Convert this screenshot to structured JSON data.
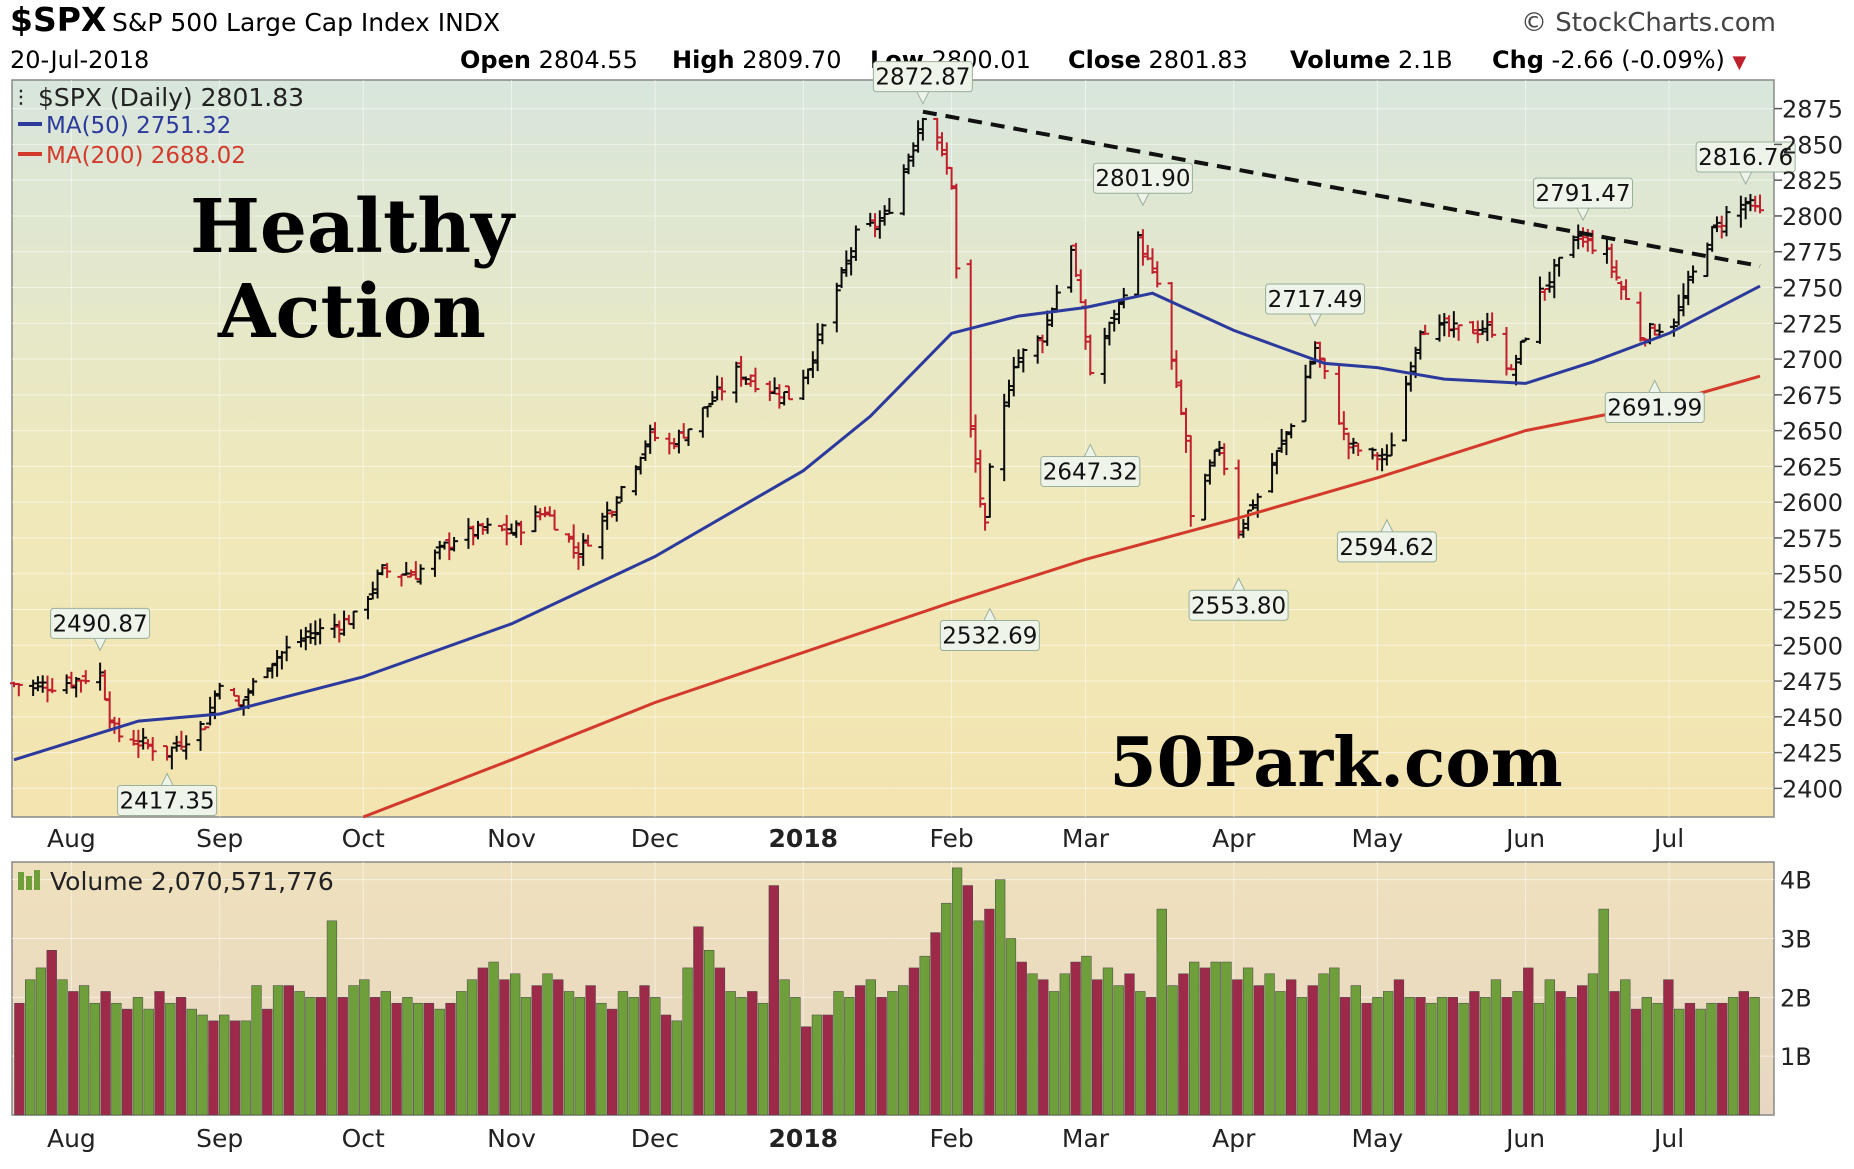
{
  "header": {
    "symbol": "$SPX",
    "description": "S&P 500 Large Cap Index",
    "exchange": "INDX",
    "source": "© StockCharts.com",
    "date": "20-Jul-2018",
    "open_label": "Open",
    "open": "2804.55",
    "high_label": "High",
    "high": "2809.70",
    "low_label": "Low",
    "low": "2800.01",
    "close_label": "Close",
    "close": "2801.83",
    "volume_label": "Volume",
    "volume": "2.1B",
    "chg_label": "Chg",
    "chg": "-2.66 (-0.09%)"
  },
  "legend": {
    "price": "$SPX (Daily) 2801.83",
    "ma50": "MA(50) 2751.32",
    "ma200": "MA(200) 2688.02",
    "volume": "Volume 2,070,571,776"
  },
  "annotations": {
    "headline": [
      "Healthy",
      "Action"
    ],
    "watermark": "50Park.com"
  },
  "colors": {
    "up": "#0b0b0b",
    "down": "#c01f2c",
    "ma50": "#2b3a9c",
    "ma200": "#d33a2c",
    "vol_up": "#6e9f3b",
    "vol_down": "#9e2a4a"
  },
  "chart_data": {
    "type": "line",
    "x_range": [
      "2017-07-20",
      "2018-07-20"
    ],
    "y_range": [
      2380,
      2895
    ],
    "y_ticks": [
      2400,
      2425,
      2450,
      2475,
      2500,
      2525,
      2550,
      2575,
      2600,
      2625,
      2650,
      2675,
      2700,
      2725,
      2750,
      2775,
      2800,
      2825,
      2850,
      2875
    ],
    "x_tick_labels": [
      {
        "label": "Aug",
        "date": "2017-08-01",
        "bold": false
      },
      {
        "label": "Sep",
        "date": "2017-09-01",
        "bold": false
      },
      {
        "label": "Oct",
        "date": "2017-10-01",
        "bold": false
      },
      {
        "label": "Nov",
        "date": "2017-11-01",
        "bold": false
      },
      {
        "label": "Dec",
        "date": "2017-12-01",
        "bold": false
      },
      {
        "label": "2018",
        "date": "2018-01-01",
        "bold": true
      },
      {
        "label": "Feb",
        "date": "2018-02-01",
        "bold": false
      },
      {
        "label": "Mar",
        "date": "2018-03-01",
        "bold": false
      },
      {
        "label": "Apr",
        "date": "2018-04-01",
        "bold": false
      },
      {
        "label": "May",
        "date": "2018-05-01",
        "bold": false
      },
      {
        "label": "Jun",
        "date": "2018-06-01",
        "bold": false
      },
      {
        "label": "Jul",
        "date": "2018-07-01",
        "bold": false
      }
    ],
    "close_series": {
      "name": "$SPX (Daily)",
      "points": [
        [
          "2017-07-20",
          2473
        ],
        [
          "2017-07-28",
          2472
        ],
        [
          "2017-08-07",
          2480
        ],
        [
          "2017-08-10",
          2438
        ],
        [
          "2017-08-17",
          2430
        ],
        [
          "2017-08-21",
          2425
        ],
        [
          "2017-08-29",
          2446
        ],
        [
          "2017-09-01",
          2476
        ],
        [
          "2017-09-05",
          2457
        ],
        [
          "2017-09-11",
          2488
        ],
        [
          "2017-09-20",
          2508
        ],
        [
          "2017-09-29",
          2519
        ],
        [
          "2017-10-05",
          2552
        ],
        [
          "2017-10-12",
          2550
        ],
        [
          "2017-10-20",
          2575
        ],
        [
          "2017-10-27",
          2581
        ],
        [
          "2017-11-01",
          2579
        ],
        [
          "2017-11-08",
          2594
        ],
        [
          "2017-11-15",
          2565
        ],
        [
          "2017-11-22",
          2598
        ],
        [
          "2017-11-30",
          2647
        ],
        [
          "2017-12-04",
          2640
        ],
        [
          "2017-12-08",
          2652
        ],
        [
          "2017-12-18",
          2691
        ],
        [
          "2017-12-22",
          2684
        ],
        [
          "2017-12-29",
          2674
        ],
        [
          "2018-01-02",
          2695
        ],
        [
          "2018-01-08",
          2748
        ],
        [
          "2018-01-12",
          2786
        ],
        [
          "2018-01-18",
          2798
        ],
        [
          "2018-01-22",
          2833
        ],
        [
          "2018-01-26",
          2872
        ],
        [
          "2018-01-29",
          2853
        ],
        [
          "2018-02-01",
          2822
        ],
        [
          "2018-02-02",
          2762
        ],
        [
          "2018-02-05",
          2649
        ],
        [
          "2018-02-08",
          2581
        ],
        [
          "2018-02-09",
          2620
        ],
        [
          "2018-02-14",
          2698
        ],
        [
          "2018-02-20",
          2716
        ],
        [
          "2018-02-26",
          2779
        ],
        [
          "2018-03-02",
          2691
        ],
        [
          "2018-03-08",
          2738
        ],
        [
          "2018-03-12",
          2783
        ],
        [
          "2018-03-16",
          2752
        ],
        [
          "2018-03-22",
          2643
        ],
        [
          "2018-03-23",
          2588
        ],
        [
          "2018-03-29",
          2640
        ],
        [
          "2018-04-02",
          2582
        ],
        [
          "2018-04-06",
          2604
        ],
        [
          "2018-04-13",
          2656
        ],
        [
          "2018-04-18",
          2708
        ],
        [
          "2018-04-25",
          2639
        ],
        [
          "2018-05-03",
          2629
        ],
        [
          "2018-05-10",
          2723
        ],
        [
          "2018-05-17",
          2720
        ],
        [
          "2018-05-25",
          2721
        ],
        [
          "2018-05-29",
          2689
        ],
        [
          "2018-06-04",
          2746
        ],
        [
          "2018-06-12",
          2786
        ],
        [
          "2018-06-18",
          2773
        ],
        [
          "2018-06-25",
          2717
        ],
        [
          "2018-07-02",
          2726
        ],
        [
          "2018-07-09",
          2784
        ],
        [
          "2018-07-13",
          2801
        ],
        [
          "2018-07-17",
          2809
        ],
        [
          "2018-07-20",
          2801
        ]
      ]
    },
    "ma50_series": {
      "name": "MA(50)",
      "points": [
        [
          "2017-07-20",
          2420
        ],
        [
          "2017-08-15",
          2447
        ],
        [
          "2017-09-01",
          2452
        ],
        [
          "2017-10-01",
          2478
        ],
        [
          "2017-11-01",
          2515
        ],
        [
          "2017-12-01",
          2562
        ],
        [
          "2018-01-01",
          2622
        ],
        [
          "2018-01-15",
          2660
        ],
        [
          "2018-02-01",
          2718
        ],
        [
          "2018-02-15",
          2730
        ],
        [
          "2018-03-01",
          2736
        ],
        [
          "2018-03-15",
          2746
        ],
        [
          "2018-04-01",
          2720
        ],
        [
          "2018-04-20",
          2697
        ],
        [
          "2018-05-01",
          2694
        ],
        [
          "2018-05-15",
          2686
        ],
        [
          "2018-06-01",
          2683
        ],
        [
          "2018-06-15",
          2698
        ],
        [
          "2018-07-01",
          2718
        ],
        [
          "2018-07-20",
          2751
        ]
      ]
    },
    "ma200_series": {
      "name": "MA(200)",
      "points": [
        [
          "2017-10-01",
          2380
        ],
        [
          "2017-11-01",
          2420
        ],
        [
          "2017-12-01",
          2460
        ],
        [
          "2018-01-01",
          2495
        ],
        [
          "2018-02-01",
          2530
        ],
        [
          "2018-03-01",
          2560
        ],
        [
          "2018-04-01",
          2588
        ],
        [
          "2018-05-01",
          2617
        ],
        [
          "2018-06-01",
          2650
        ],
        [
          "2018-07-01",
          2670
        ],
        [
          "2018-07-20",
          2688
        ]
      ]
    },
    "trendline": {
      "style": "dashed",
      "points": [
        [
          "2018-01-26",
          2872.87
        ],
        [
          "2018-07-20",
          2765
        ]
      ]
    },
    "labels": [
      {
        "text": "2490.87",
        "date": "2017-08-07",
        "value": 2490.87,
        "pos": "above"
      },
      {
        "text": "2417.35",
        "date": "2017-08-21",
        "value": 2417.35,
        "pos": "below"
      },
      {
        "text": "2872.87",
        "date": "2018-01-26",
        "value": 2872.87,
        "pos": "above"
      },
      {
        "text": "2532.69",
        "date": "2018-02-09",
        "value": 2532.69,
        "pos": "below"
      },
      {
        "text": "2801.90",
        "date": "2018-03-13",
        "value": 2801.9,
        "pos": "above"
      },
      {
        "text": "2647.32",
        "date": "2018-03-02",
        "value": 2647.32,
        "pos": "below"
      },
      {
        "text": "2717.49",
        "date": "2018-04-18",
        "value": 2717.49,
        "pos": "above"
      },
      {
        "text": "2553.80",
        "date": "2018-04-02",
        "value": 2553.8,
        "pos": "below"
      },
      {
        "text": "2594.62",
        "date": "2018-05-03",
        "value": 2594.62,
        "pos": "below"
      },
      {
        "text": "2791.47",
        "date": "2018-06-13",
        "value": 2791.47,
        "pos": "above"
      },
      {
        "text": "2691.99",
        "date": "2018-06-28",
        "value": 2691.99,
        "pos": "below"
      },
      {
        "text": "2816.76",
        "date": "2018-07-17",
        "value": 2816.76,
        "pos": "above"
      }
    ],
    "volume": {
      "y_ticks": [
        {
          "label": "4B",
          "value": 4
        },
        {
          "label": "3B",
          "value": 3
        },
        {
          "label": "2B",
          "value": 2
        },
        {
          "label": "1B",
          "value": 1
        }
      ],
      "y_range": [
        0,
        4.3
      ],
      "values_billions": [
        1.9,
        2.3,
        2.5,
        2.8,
        2.3,
        2.1,
        2.2,
        1.9,
        2.1,
        1.9,
        1.8,
        2.0,
        1.8,
        2.1,
        1.9,
        2.0,
        1.8,
        1.7,
        1.6,
        1.7,
        1.6,
        1.6,
        2.2,
        1.8,
        2.2,
        2.2,
        2.1,
        2.0,
        2.0,
        3.3,
        2.0,
        2.2,
        2.3,
        2.0,
        2.1,
        1.9,
        2.0,
        1.9,
        1.9,
        1.8,
        1.9,
        2.1,
        2.3,
        2.5,
        2.6,
        2.3,
        2.4,
        2.0,
        2.2,
        2.4,
        2.3,
        2.1,
        2.0,
        2.2,
        1.9,
        1.8,
        2.1,
        2.0,
        2.2,
        2.0,
        1.7,
        1.6,
        2.5,
        3.2,
        2.8,
        2.5,
        2.1,
        2.0,
        2.1,
        1.9,
        3.9,
        2.3,
        2.0,
        1.5,
        1.7,
        1.7,
        2.1,
        2.0,
        2.2,
        2.3,
        2.0,
        2.1,
        2.2,
        2.5,
        2.7,
        3.1,
        3.6,
        4.2,
        3.9,
        3.3,
        3.5,
        4.0,
        3.0,
        2.6,
        2.4,
        2.3,
        2.1,
        2.4,
        2.6,
        2.7,
        2.3,
        2.5,
        2.2,
        2.4,
        2.1,
        2.0,
        3.5,
        2.2,
        2.4,
        2.6,
        2.5,
        2.6,
        2.6,
        2.3,
        2.5,
        2.2,
        2.4,
        2.1,
        2.3,
        2.0,
        2.2,
        2.4,
        2.5,
        2.0,
        2.2,
        1.9,
        2.0,
        2.1,
        2.3,
        2.0,
        2.0,
        1.9,
        2.0,
        2.0,
        1.9,
        2.1,
        2.0,
        2.3,
        2.0,
        2.1,
        2.5,
        1.9,
        2.3,
        2.1,
        2.0,
        2.2,
        2.4,
        3.5,
        2.1,
        2.3,
        1.8,
        2.0,
        1.9,
        2.3,
        1.8,
        1.9,
        1.8,
        1.9,
        1.9,
        2.0,
        2.1,
        2.0
      ]
    }
  }
}
